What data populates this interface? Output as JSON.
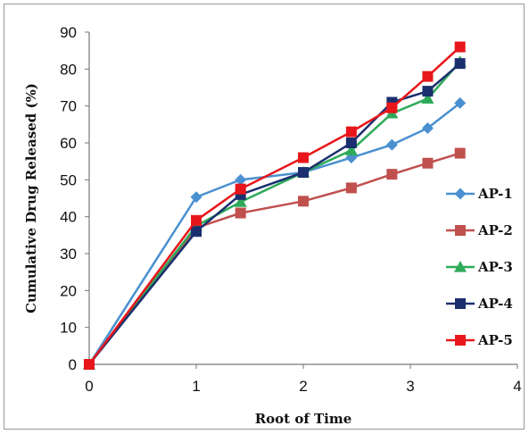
{
  "chart_data": {
    "type": "line",
    "title": "",
    "xlabel": "Root of Time",
    "ylabel": "Cumulative Drug Released (%)",
    "xlim": [
      0,
      4
    ],
    "ylim": [
      0,
      90
    ],
    "x_ticks": [
      "0",
      "1",
      "2",
      "3",
      "4"
    ],
    "y_ticks": [
      "0",
      "10",
      "20",
      "30",
      "40",
      "50",
      "60",
      "70",
      "80",
      "90"
    ],
    "grid": false,
    "legend_position": "right",
    "x": [
      0,
      1,
      1.414,
      2,
      2.449,
      2.828,
      3.162,
      3.464
    ],
    "series": [
      {
        "name": "AP-1",
        "color": "#4a90d0",
        "marker": "diamond",
        "values": [
          0,
          45.3,
          50.0,
          52.0,
          56.0,
          59.5,
          64.0,
          70.8
        ]
      },
      {
        "name": "AP-2",
        "color": "#c0504d",
        "marker": "square",
        "values": [
          0,
          37.0,
          41.0,
          44.2,
          47.8,
          51.5,
          54.5,
          57.2
        ]
      },
      {
        "name": "AP-3",
        "color": "#2eaa5a",
        "marker": "triangle",
        "values": [
          0,
          37.5,
          44.0,
          52.0,
          58.0,
          68.0,
          72.0,
          82.0
        ]
      },
      {
        "name": "AP-4",
        "color": "#1b2f6e",
        "marker": "square",
        "values": [
          0,
          36.0,
          46.0,
          52.0,
          60.0,
          71.0,
          74.0,
          81.5
        ]
      },
      {
        "name": "AP-5",
        "color": "#e8161b",
        "marker": "square",
        "values": [
          0,
          39.0,
          47.5,
          56.0,
          63.0,
          69.5,
          78.0,
          86.0
        ]
      }
    ]
  }
}
